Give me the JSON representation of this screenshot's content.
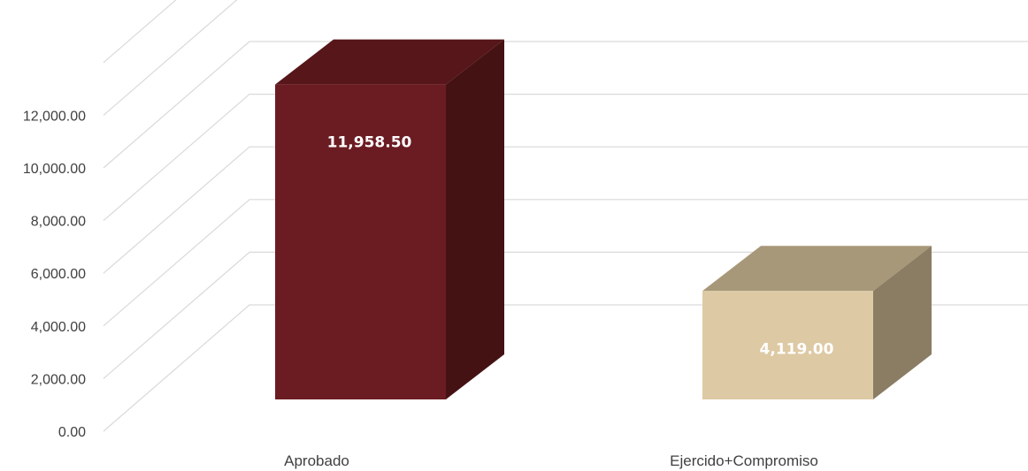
{
  "chart_data": {
    "type": "bar",
    "style": "3d-column",
    "categories": [
      "Aprobado",
      "Ejercido+Compromiso"
    ],
    "values": [
      11958.5,
      4119.0
    ],
    "data_labels": [
      "11,958.50",
      "4,119.00"
    ],
    "y_ticks": [
      0,
      2000,
      4000,
      6000,
      8000,
      10000,
      12000
    ],
    "y_tick_labels": [
      "0.00",
      "2,000.00",
      "4,000.00",
      "6,000.00",
      "8,000.00",
      "10,000.00",
      "12,000.00"
    ],
    "ylim": [
      0,
      14000
    ],
    "grid": true,
    "legend": "none",
    "colors": {
      "series_front": [
        "#6b1c22",
        "#ddc9a3"
      ],
      "series_top": [
        "#571619",
        "#a8987a"
      ],
      "series_side": [
        "#451214",
        "#8a7d63"
      ],
      "grid": "#d9d9d9",
      "axis_text": "#404040",
      "data_label_text": "#ffffff"
    }
  }
}
